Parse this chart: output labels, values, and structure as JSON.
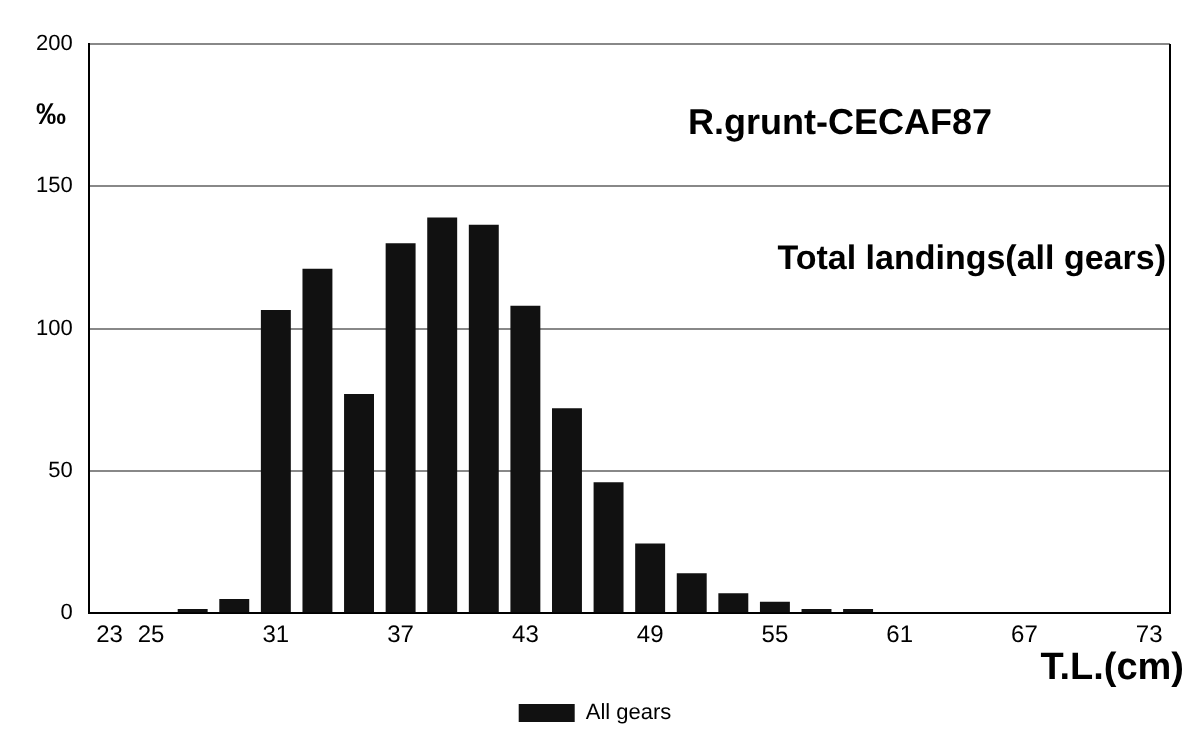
{
  "chart_data": {
    "type": "bar",
    "ylabel": "‰",
    "xlabel": "T.L.(cm)",
    "annotations": [
      "R.grunt-CECAF87",
      "Total landings(all gears)"
    ],
    "categories": [
      "23",
      "25",
      null,
      null,
      "31",
      null,
      null,
      "37",
      null,
      null,
      "43",
      null,
      null,
      "49",
      null,
      null,
      "55",
      null,
      null,
      "61",
      null,
      null,
      "67",
      null,
      null,
      "73"
    ],
    "series": [
      {
        "name": "All gears",
        "color": "#111111",
        "values": [
          0,
          null,
          1.5,
          5,
          106.5,
          121,
          77,
          130,
          139,
          136.5,
          108,
          72,
          46,
          24.5,
          14,
          7,
          4,
          1.5,
          1.5,
          null,
          null,
          0,
          0,
          0,
          0,
          0
        ]
      }
    ],
    "ylim": [
      0,
      200
    ],
    "yticks": [
      0,
      50,
      100,
      150,
      200
    ],
    "grid": "y",
    "legend": "bottom"
  }
}
